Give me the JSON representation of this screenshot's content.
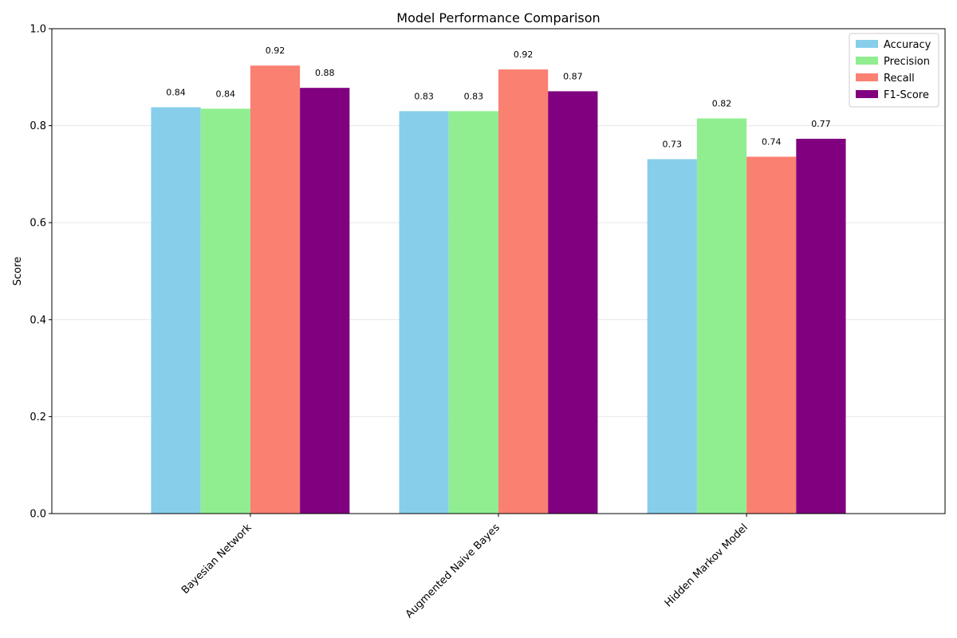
{
  "chart_data": {
    "type": "bar",
    "title": "Model Performance Comparison",
    "xlabel": "",
    "ylabel": "Score",
    "categories": [
      "Bayesian Network",
      "Augmented Naive Bayes",
      "Hidden Markov Model"
    ],
    "series": [
      {
        "name": "Accuracy",
        "values": [
          0.838,
          0.83,
          0.731
        ],
        "labels": [
          "0.84",
          "0.83",
          "0.73"
        ],
        "color": "#87CEEB"
      },
      {
        "name": "Precision",
        "values": [
          0.835,
          0.83,
          0.815
        ],
        "labels": [
          "0.84",
          "0.83",
          "0.82"
        ],
        "color": "#90EE90"
      },
      {
        "name": "Recall",
        "values": [
          0.924,
          0.916,
          0.736
        ],
        "labels": [
          "0.92",
          "0.92",
          "0.74"
        ],
        "color": "#FA8072"
      },
      {
        "name": "F1-Score",
        "values": [
          0.878,
          0.871,
          0.773
        ],
        "labels": [
          "0.88",
          "0.87",
          "0.77"
        ],
        "color": "#800080"
      }
    ],
    "ylim": [
      0,
      1.0
    ],
    "yticks": [
      0.0,
      0.2,
      0.4,
      0.6,
      0.8,
      1.0
    ],
    "ytick_labels": [
      "0.0",
      "0.2",
      "0.4",
      "0.6",
      "0.8",
      "1.0"
    ],
    "grid": "y",
    "legend_position": "top-right",
    "xtick_rotation": -45
  }
}
